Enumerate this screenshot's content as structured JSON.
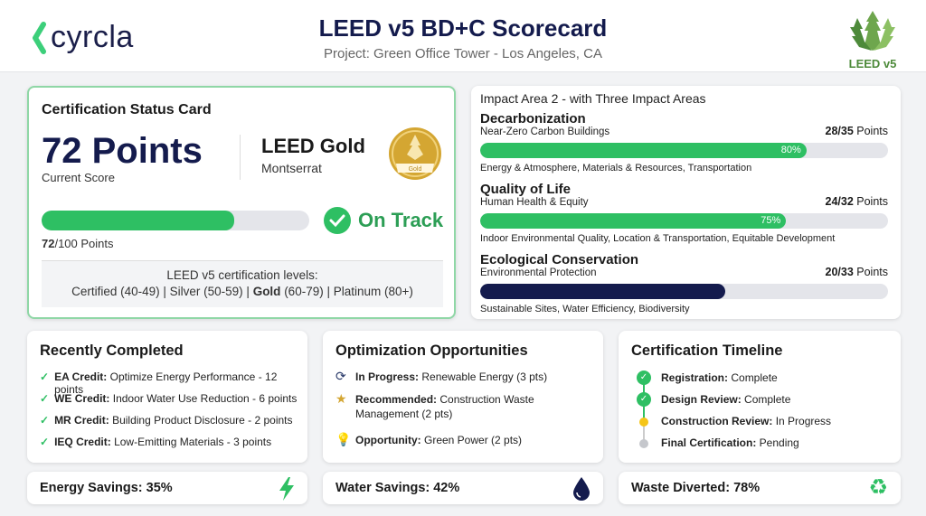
{
  "header": {
    "logo": "cyrcla",
    "title": "LEED v5 BD+C Scorecard",
    "subtitle": "Project: Green Office Tower - Los Angeles, CA",
    "badge": "LEED v5"
  },
  "cert": {
    "title": "Certification Status Card",
    "points": "72 Points",
    "points_label": "Current Score",
    "level": "LEED Gold",
    "level_sub": "Montserrat",
    "medal": "Gold",
    "progress": 72,
    "progress_bold": "72",
    "progress_rest": "/100 Points",
    "status": "On Track",
    "levels_title": "LEED v5 certification levels:",
    "levels": [
      {
        "t": "Certified (40-49)",
        "b": false
      },
      {
        "t": "Silver (50-59)",
        "b": false
      },
      {
        "t": "Gold",
        "rest": " (60-79)",
        "b": true
      },
      {
        "t": "Platinum (80+)",
        "b": false
      }
    ]
  },
  "impact": {
    "title": "Impact Area 2 - with Three Impact Areas",
    "areas": [
      {
        "name": "Decarbonization",
        "sub": "Near-Zero Carbon Buildings",
        "score": "28/35",
        "unit": " Points",
        "percent": 80,
        "percent_label": "80%",
        "categories": "Energy & Atmosphere, Materials & Resources, Transportation",
        "color": "#2ebf63"
      },
      {
        "name": "Quality of Life",
        "sub": "Human Health & Equity",
        "score": "24/32",
        "unit": " Points",
        "percent": 75,
        "percent_label": "75%",
        "categories": "Indoor Environmental Quality, Location & Transportation, Equitable Development",
        "color": "#2ebf63"
      },
      {
        "name": "Ecological Conservation",
        "sub": "Environmental Protection",
        "score": "20/33",
        "unit": " Points",
        "percent": 60,
        "percent_label": "",
        "categories": "Sustainable Sites, Water Efficiency, Biodiversity",
        "color": "#141b4d"
      }
    ]
  },
  "completed": {
    "title": "Recently Completed",
    "items": [
      {
        "b": "EA Credit:",
        "t": " Optimize Energy Performance - 12 points"
      },
      {
        "b": "WE Credit:",
        "t": " Indoor Water Use Reduction - 6 points"
      },
      {
        "b": "MR Credit:",
        "t": " Building Product Disclosure - 2 points"
      },
      {
        "b": "IEQ Credit:",
        "t": " Low-Emitting Materials - 3 points"
      }
    ]
  },
  "opportunities": {
    "title": "Optimization Opportunities",
    "items": [
      {
        "icon": "refresh-icon",
        "b": "In Progress:",
        "t": " Renewable Energy (3 pts)"
      },
      {
        "icon": "star-icon",
        "b": "Recommended:",
        "t": " Construction Waste Management (2 pts)"
      },
      {
        "icon": "lightbulb-icon",
        "b": "Opportunity:",
        "t": " Green Power (2 pts)"
      }
    ]
  },
  "timeline": {
    "title": "Certification Timeline",
    "items": [
      {
        "b": "Registration:",
        "t": " Complete",
        "state": "complete"
      },
      {
        "b": "Design Review:",
        "t": " Complete",
        "state": "complete"
      },
      {
        "b": "Construction Review:",
        "t": " In Progress",
        "state": "in-progress"
      },
      {
        "b": "Final Certification:",
        "t": " Pending",
        "state": "pending"
      }
    ]
  },
  "savings": [
    {
      "label": "Energy Savings: 35%",
      "icon": "lightning-icon"
    },
    {
      "label": "Water Savings: 42%",
      "icon": "water-drop-icon"
    },
    {
      "label": "Waste Diverted: 78%",
      "icon": "recycle-icon"
    }
  ],
  "colors": {
    "green": "#2ebf63",
    "navy": "#141b4d",
    "gold": "#d4a632",
    "yellow": "#f5c518"
  }
}
